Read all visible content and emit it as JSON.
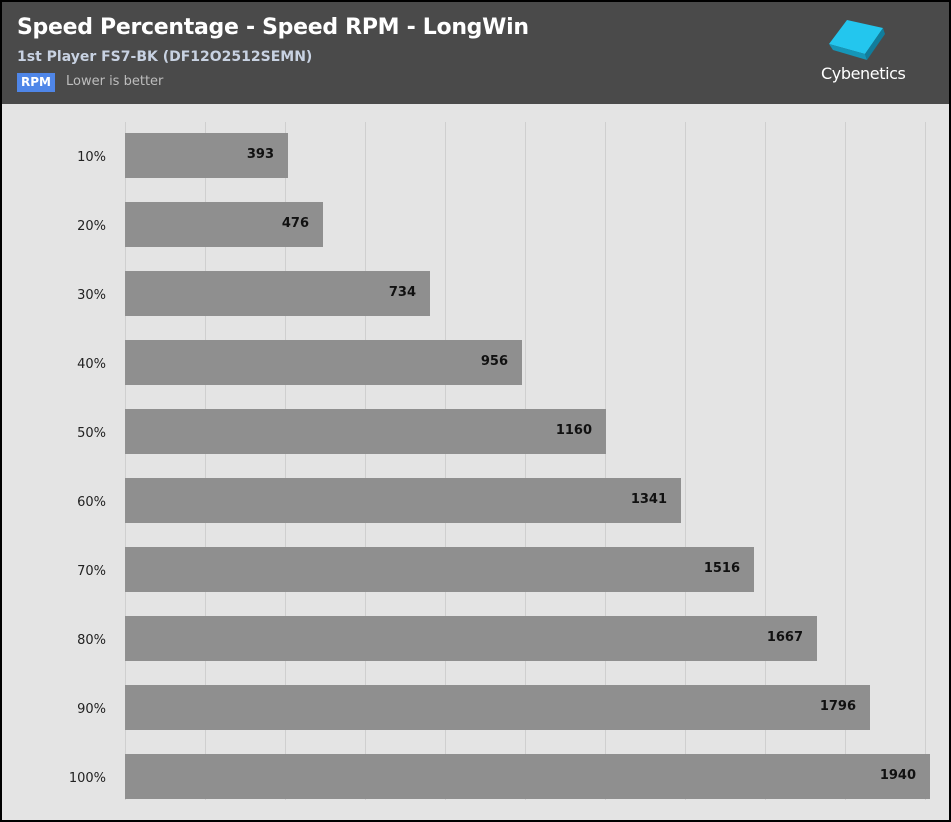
{
  "header": {
    "title": "Speed Percentage - Speed RPM - LongWin",
    "subtitle": "1st Player FS7-BK (DF12O2512SEMN)",
    "unit_badge": "RPM",
    "hint": "Lower is better",
    "logo_text": "Cybenetics",
    "logo_icon": "cybenetics-cube-logo-icon"
  },
  "colors": {
    "header_bg": "#4a4a4a",
    "plot_bg": "#e4e4e4",
    "bar": "#8f8f8f",
    "badge": "#4f86e8",
    "logo_accent": "#23c6ee"
  },
  "chart_data": {
    "type": "bar",
    "orientation": "horizontal",
    "title": "Speed Percentage - Speed RPM - LongWin",
    "subtitle": "1st Player FS7-BK (DF12O2512SEMN)",
    "unit": "RPM",
    "categories": [
      "10%",
      "20%",
      "30%",
      "40%",
      "50%",
      "60%",
      "70%",
      "80%",
      "90%",
      "100%"
    ],
    "values": [
      393,
      476,
      734,
      956,
      1160,
      1341,
      1516,
      1667,
      1796,
      1940
    ],
    "xlim": [
      0,
      1940
    ],
    "grid": true,
    "data_labels": true,
    "legend": "none"
  }
}
